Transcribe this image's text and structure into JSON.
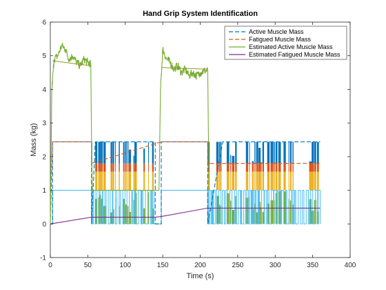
{
  "chart_data": {
    "type": "line",
    "title": "Hand Grip System Identification",
    "xlabel": "Time (s)",
    "ylabel": "Mass (kg)",
    "xlim": [
      0,
      400
    ],
    "ylim": [
      -1,
      6
    ],
    "xticks": [
      0,
      50,
      100,
      150,
      200,
      250,
      300,
      350,
      400
    ],
    "yticks": [
      -1,
      0,
      1,
      2,
      3,
      4,
      5,
      6
    ],
    "legend_position": "top-right",
    "grid": false,
    "colors": {
      "active": "#0072BD",
      "fatigued": "#D95319",
      "estimated_active": "#77AC30",
      "estimated_fatigued": "#7E2F8E",
      "resting_band": "#EDB120",
      "cyan_trace": "#4DBEEE"
    },
    "series": [
      {
        "name": "Active Muscle Mass",
        "style": "dashed",
        "x": [
          0,
          3,
          3,
          55,
          55,
          60,
          90,
          120,
          140,
          140,
          148,
          148,
          210,
          210,
          230,
          270,
          300,
          330,
          360
        ],
        "y": [
          0,
          0,
          2.44,
          2.44,
          0,
          2.44,
          2.44,
          2.44,
          2.44,
          0,
          0,
          2.44,
          2.44,
          0,
          2.44,
          2.44,
          2.44,
          2.44,
          2.44
        ]
      },
      {
        "name": "Fatigued Muscle Mass",
        "style": "dashed",
        "x": [
          0,
          3,
          55,
          55,
          148,
          210,
          210,
          360
        ],
        "y": [
          0,
          2.44,
          2.44,
          1.8,
          2.44,
          2.44,
          1.8,
          1.8
        ]
      },
      {
        "name": "Estimated Active Muscle Mass",
        "style": "solid",
        "x": [
          0,
          2,
          5,
          10,
          15,
          20,
          25,
          30,
          35,
          40,
          45,
          50,
          54,
          55,
          56,
          145,
          147,
          150,
          155,
          160,
          165,
          170,
          175,
          180,
          185,
          190,
          195,
          200,
          205,
          210,
          211,
          212
        ],
        "y": [
          0,
          4.0,
          4.9,
          5.0,
          5.3,
          5.2,
          4.9,
          5.0,
          4.8,
          4.7,
          4.9,
          4.8,
          4.75,
          2.5,
          1.0,
          1.0,
          4.0,
          5.2,
          4.9,
          4.8,
          4.6,
          4.7,
          4.5,
          4.6,
          4.4,
          4.5,
          4.4,
          4.5,
          4.55,
          4.55,
          2.5,
          1.0
        ]
      },
      {
        "name": "Estimated Fatigued Muscle Mass",
        "style": "solid",
        "x": [
          0,
          55,
          140,
          148,
          210,
          220,
          280,
          300,
          360
        ],
        "y": [
          0,
          0.2,
          0.2,
          0.22,
          0.47,
          0.47,
          0.47,
          0.47,
          0.47
        ]
      }
    ],
    "annotations": {
      "flat_line_value": 4.85,
      "estimated_active_low_value": 1.0
    }
  }
}
